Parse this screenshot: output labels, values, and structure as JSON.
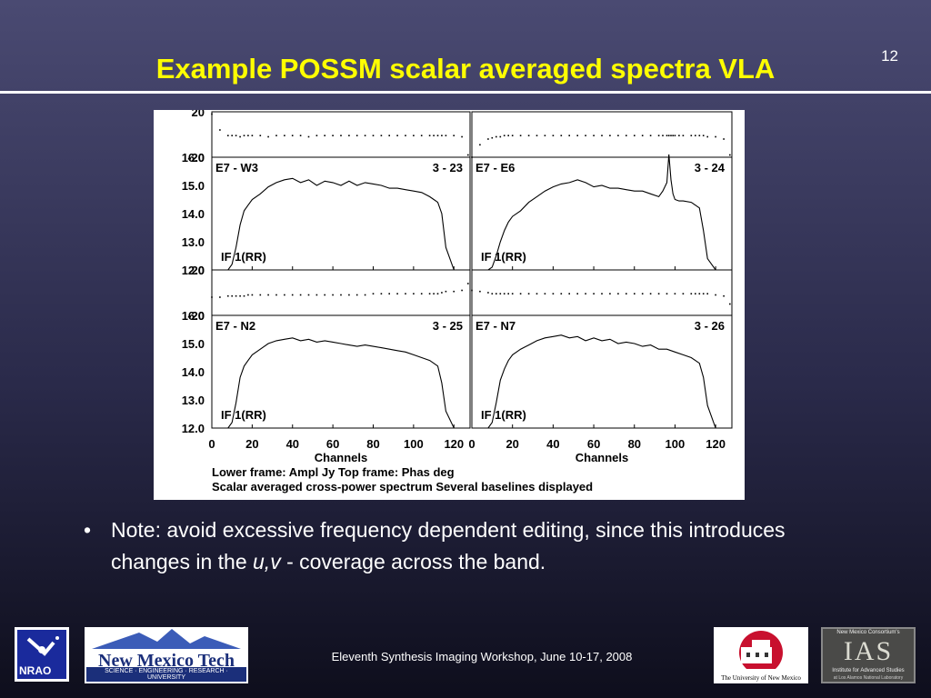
{
  "slide": {
    "number": "12",
    "title": "Example POSSM scalar averaged spectra VLA",
    "note_bullet": "•",
    "note_pre": "Note: avoid excessive frequency dependent editing, since this introduces changes in the ",
    "note_italic": "u,v",
    "note_post": " - coverage across the band.",
    "footer": "Eleventh Synthesis Imaging Workshop, June 10-17, 2008"
  },
  "logos": {
    "nrao": "NRAO",
    "nmt_name": "New Mexico Tech",
    "nmt_tagline": "SCIENCE · ENGINEERING · RESEARCH · UNIVERSITY",
    "unm": "The University of New Mexico",
    "ias_top": "New Mexico Consortium's",
    "ias_mark": "IAS",
    "ias_name": "Institute for Advanced Studies",
    "ias_sub": "at Los Alamos National Laboratory"
  },
  "chart_data": {
    "type": "line",
    "x_ticks": [
      "0",
      "20",
      "40",
      "60",
      "80",
      "100",
      "120"
    ],
    "xlabel": "Channels",
    "xlim": [
      0,
      128
    ],
    "amp_ticks": [
      "12.0",
      "13.0",
      "14.0",
      "15.0",
      "16.0"
    ],
    "amp_ylim": [
      12.0,
      16.0
    ],
    "phase_ticks": [
      "20",
      "-20"
    ],
    "phase_ylim": [
      -20,
      20
    ],
    "caption_1": "Lower frame: Ampl Jy   Top frame: Phas deg",
    "caption_2": "Scalar averaged cross-power spectrum    Several baselines displayed",
    "panels": [
      {
        "baseline": "E7 - W3",
        "antennas": "3 - 23",
        "if_label": "IF 1(RR)",
        "channels": [
          0,
          4,
          8,
          10,
          12,
          14,
          16,
          18,
          20,
          24,
          28,
          32,
          36,
          40,
          44,
          48,
          52,
          56,
          60,
          64,
          68,
          72,
          76,
          80,
          84,
          88,
          92,
          96,
          100,
          104,
          108,
          110,
          112,
          114,
          116,
          120,
          124,
          127
        ],
        "amplitude": [
          12.0,
          12.0,
          12.0,
          12.2,
          12.8,
          13.6,
          14.1,
          14.3,
          14.5,
          14.7,
          14.95,
          15.1,
          15.2,
          15.25,
          15.1,
          15.2,
          15.0,
          15.15,
          15.1,
          15.0,
          15.15,
          15.0,
          15.1,
          15.05,
          15.0,
          14.9,
          14.9,
          14.85,
          14.8,
          14.75,
          14.6,
          14.5,
          14.4,
          14.0,
          12.8,
          12.0,
          12.0,
          12.0
        ],
        "phase": [
          18,
          4,
          -1,
          -1,
          -1,
          -2,
          -1,
          -1,
          -1,
          -1,
          -2,
          -1,
          -1,
          -1,
          -1,
          -2,
          -1,
          -1,
          -1,
          -1,
          -1,
          -1,
          -1,
          -1,
          -1,
          -1,
          -1,
          -1,
          -1,
          -1,
          -1,
          -1,
          -1,
          -1,
          -1,
          -1,
          -2,
          -18
        ]
      },
      {
        "baseline": "E7 - E6",
        "antennas": "3 - 24",
        "if_label": "IF 1(RR)",
        "channels": [
          0,
          4,
          8,
          10,
          12,
          14,
          16,
          18,
          20,
          24,
          28,
          32,
          36,
          40,
          44,
          48,
          52,
          56,
          60,
          64,
          68,
          72,
          76,
          80,
          84,
          88,
          92,
          94,
          96,
          97,
          98,
          99,
          100,
          102,
          104,
          108,
          110,
          112,
          114,
          116,
          120,
          124,
          127
        ],
        "amplitude": [
          12.0,
          12.0,
          12.0,
          12.1,
          12.5,
          13.0,
          13.4,
          13.7,
          13.9,
          14.1,
          14.4,
          14.6,
          14.8,
          14.95,
          15.05,
          15.1,
          15.2,
          15.1,
          14.95,
          15.0,
          14.9,
          14.9,
          14.85,
          14.8,
          14.8,
          14.7,
          14.6,
          14.8,
          15.1,
          16.1,
          15.2,
          14.7,
          14.5,
          14.45,
          14.45,
          14.4,
          14.3,
          14.2,
          13.4,
          12.4,
          12.0,
          12.0,
          12.0
        ],
        "phase": [
          -20,
          -9,
          -4,
          -3,
          -2,
          -2,
          -1,
          -1,
          -1,
          -1,
          -1,
          -1,
          -1,
          -1,
          -1,
          -1,
          -1,
          -1,
          -1,
          -1,
          -1,
          -1,
          -1,
          -1,
          -1,
          -1,
          -1,
          -1,
          -1,
          -1,
          -1,
          -1,
          -1,
          -1,
          -1,
          -1,
          -1,
          -1,
          -1,
          -2,
          -2,
          -4,
          -18
        ]
      },
      {
        "baseline": "E7 - N2",
        "antennas": "3 - 25",
        "if_label": "IF 1(RR)",
        "channels": [
          0,
          4,
          8,
          10,
          12,
          14,
          16,
          18,
          20,
          24,
          28,
          32,
          36,
          40,
          44,
          48,
          52,
          56,
          60,
          64,
          68,
          72,
          76,
          80,
          84,
          88,
          92,
          96,
          100,
          104,
          108,
          110,
          112,
          114,
          116,
          120,
          124,
          127
        ],
        "amplitude": [
          12.0,
          12.0,
          12.0,
          12.2,
          12.9,
          13.8,
          14.2,
          14.4,
          14.6,
          14.8,
          15.0,
          15.1,
          15.15,
          15.2,
          15.1,
          15.15,
          15.05,
          15.1,
          15.05,
          15.0,
          14.95,
          14.9,
          14.95,
          14.9,
          14.85,
          14.8,
          14.75,
          14.7,
          14.6,
          14.5,
          14.4,
          14.3,
          14.2,
          13.6,
          12.6,
          12.0,
          12.0,
          12.0
        ],
        "phase": [
          -4,
          -4,
          -3,
          -3,
          -3,
          -3,
          -3,
          -2,
          -2,
          -2,
          -2,
          -2,
          -2,
          -2,
          -2,
          -2,
          -2,
          -2,
          -2,
          -2,
          -2,
          -2,
          -2,
          -1,
          -1,
          -1,
          -1,
          -1,
          -1,
          -1,
          -1,
          -1,
          -1,
          0,
          1,
          1,
          2,
          8
        ]
      },
      {
        "baseline": "E7 - N7",
        "antennas": "3 - 26",
        "if_label": "IF 1(RR)",
        "channels": [
          0,
          4,
          8,
          10,
          12,
          14,
          16,
          18,
          20,
          24,
          28,
          32,
          36,
          40,
          44,
          48,
          52,
          56,
          60,
          64,
          68,
          72,
          76,
          80,
          84,
          88,
          92,
          96,
          100,
          104,
          108,
          110,
          112,
          114,
          116,
          120,
          124,
          127
        ],
        "amplitude": [
          12.0,
          12.0,
          12.0,
          12.2,
          12.9,
          13.7,
          14.1,
          14.4,
          14.6,
          14.8,
          14.95,
          15.1,
          15.2,
          15.25,
          15.3,
          15.2,
          15.25,
          15.1,
          15.2,
          15.1,
          15.15,
          15.0,
          15.05,
          15.0,
          14.9,
          14.95,
          14.8,
          14.8,
          14.7,
          14.6,
          14.5,
          14.4,
          14.3,
          13.8,
          12.8,
          12.0,
          12.0,
          12.0
        ],
        "phase": [
          2,
          1,
          0,
          -1,
          -1,
          -1,
          -1,
          -1,
          -1,
          -1,
          -1,
          -1,
          -1,
          -1,
          -1,
          -1,
          -1,
          -1,
          -1,
          -1,
          -1,
          -1,
          -1,
          -1,
          -1,
          -1,
          -1,
          -1,
          -1,
          -1,
          -1,
          -1,
          -1,
          -1,
          -1,
          -2,
          -3,
          -10
        ]
      }
    ]
  }
}
